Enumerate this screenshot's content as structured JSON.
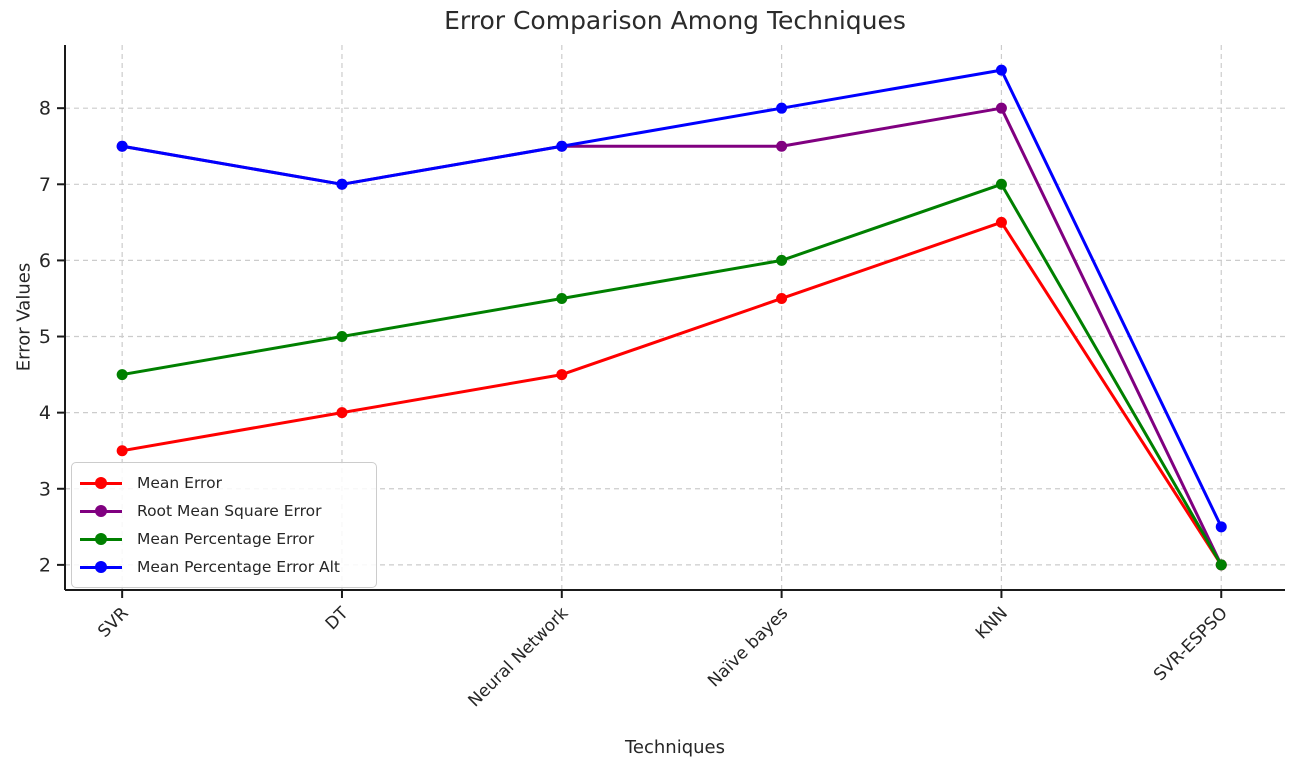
{
  "chart_data": {
    "type": "line",
    "title": "Error Comparison Among Techniques",
    "xlabel": "Techniques",
    "ylabel": "Error Values",
    "categories": [
      "SVR",
      "DT",
      "Neural Network",
      "Naïve bayes",
      "KNN",
      "SVR-ESPSO"
    ],
    "yticks": [
      2,
      3,
      4,
      5,
      6,
      7,
      8
    ],
    "ylim": [
      1.67,
      8.83
    ],
    "xlim": [
      -0.26,
      5.29
    ],
    "grid": true,
    "grid_style": "dashed",
    "legend_position": "lower left",
    "series": [
      {
        "name": "Mean Error",
        "color": "#ff0000",
        "values": [
          3.5,
          4.0,
          4.5,
          5.5,
          6.5,
          2.0
        ]
      },
      {
        "name": "Root Mean Square Error",
        "color": "#800080",
        "values": [
          7.5,
          7.0,
          7.5,
          7.5,
          8.0,
          2.0
        ]
      },
      {
        "name": "Mean Percentage Error",
        "color": "#008000",
        "values": [
          4.5,
          5.0,
          5.5,
          6.0,
          7.0,
          2.0
        ]
      },
      {
        "name": "Mean Percentage Error Alt",
        "color": "#0000ff",
        "values": [
          7.5,
          7.0,
          7.5,
          8.0,
          8.5,
          2.5
        ]
      }
    ],
    "colors": {
      "grid": "#cccccc",
      "spine": "#1a1a1a",
      "text": "#262626"
    }
  }
}
